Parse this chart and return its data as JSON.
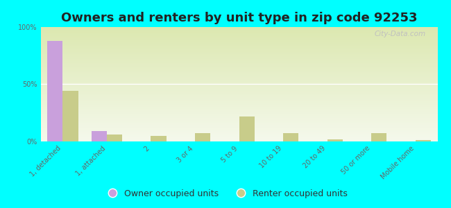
{
  "title": "Owners and renters by unit type in zip code 92253",
  "categories": [
    "1, detached",
    "1, attached",
    "2",
    "3 or 4",
    "5 to 9",
    "10 to 19",
    "20 to 49",
    "50 or more",
    "Mobile home"
  ],
  "owner_values": [
    88,
    9,
    0,
    0,
    0,
    0,
    0,
    0,
    0
  ],
  "renter_values": [
    44,
    6,
    5,
    7,
    22,
    7,
    2,
    7,
    1
  ],
  "owner_color": "#c9a0dc",
  "renter_color": "#c8cc8a",
  "background_color": "#00ffff",
  "ylim": [
    0,
    100
  ],
  "yticks": [
    0,
    50,
    100
  ],
  "ytick_labels": [
    "0%",
    "50%",
    "100%"
  ],
  "bar_width": 0.35,
  "legend_owner": "Owner occupied units",
  "legend_renter": "Renter occupied units",
  "watermark": "City-Data.com",
  "title_fontsize": 13,
  "tick_fontsize": 7,
  "legend_fontsize": 9
}
